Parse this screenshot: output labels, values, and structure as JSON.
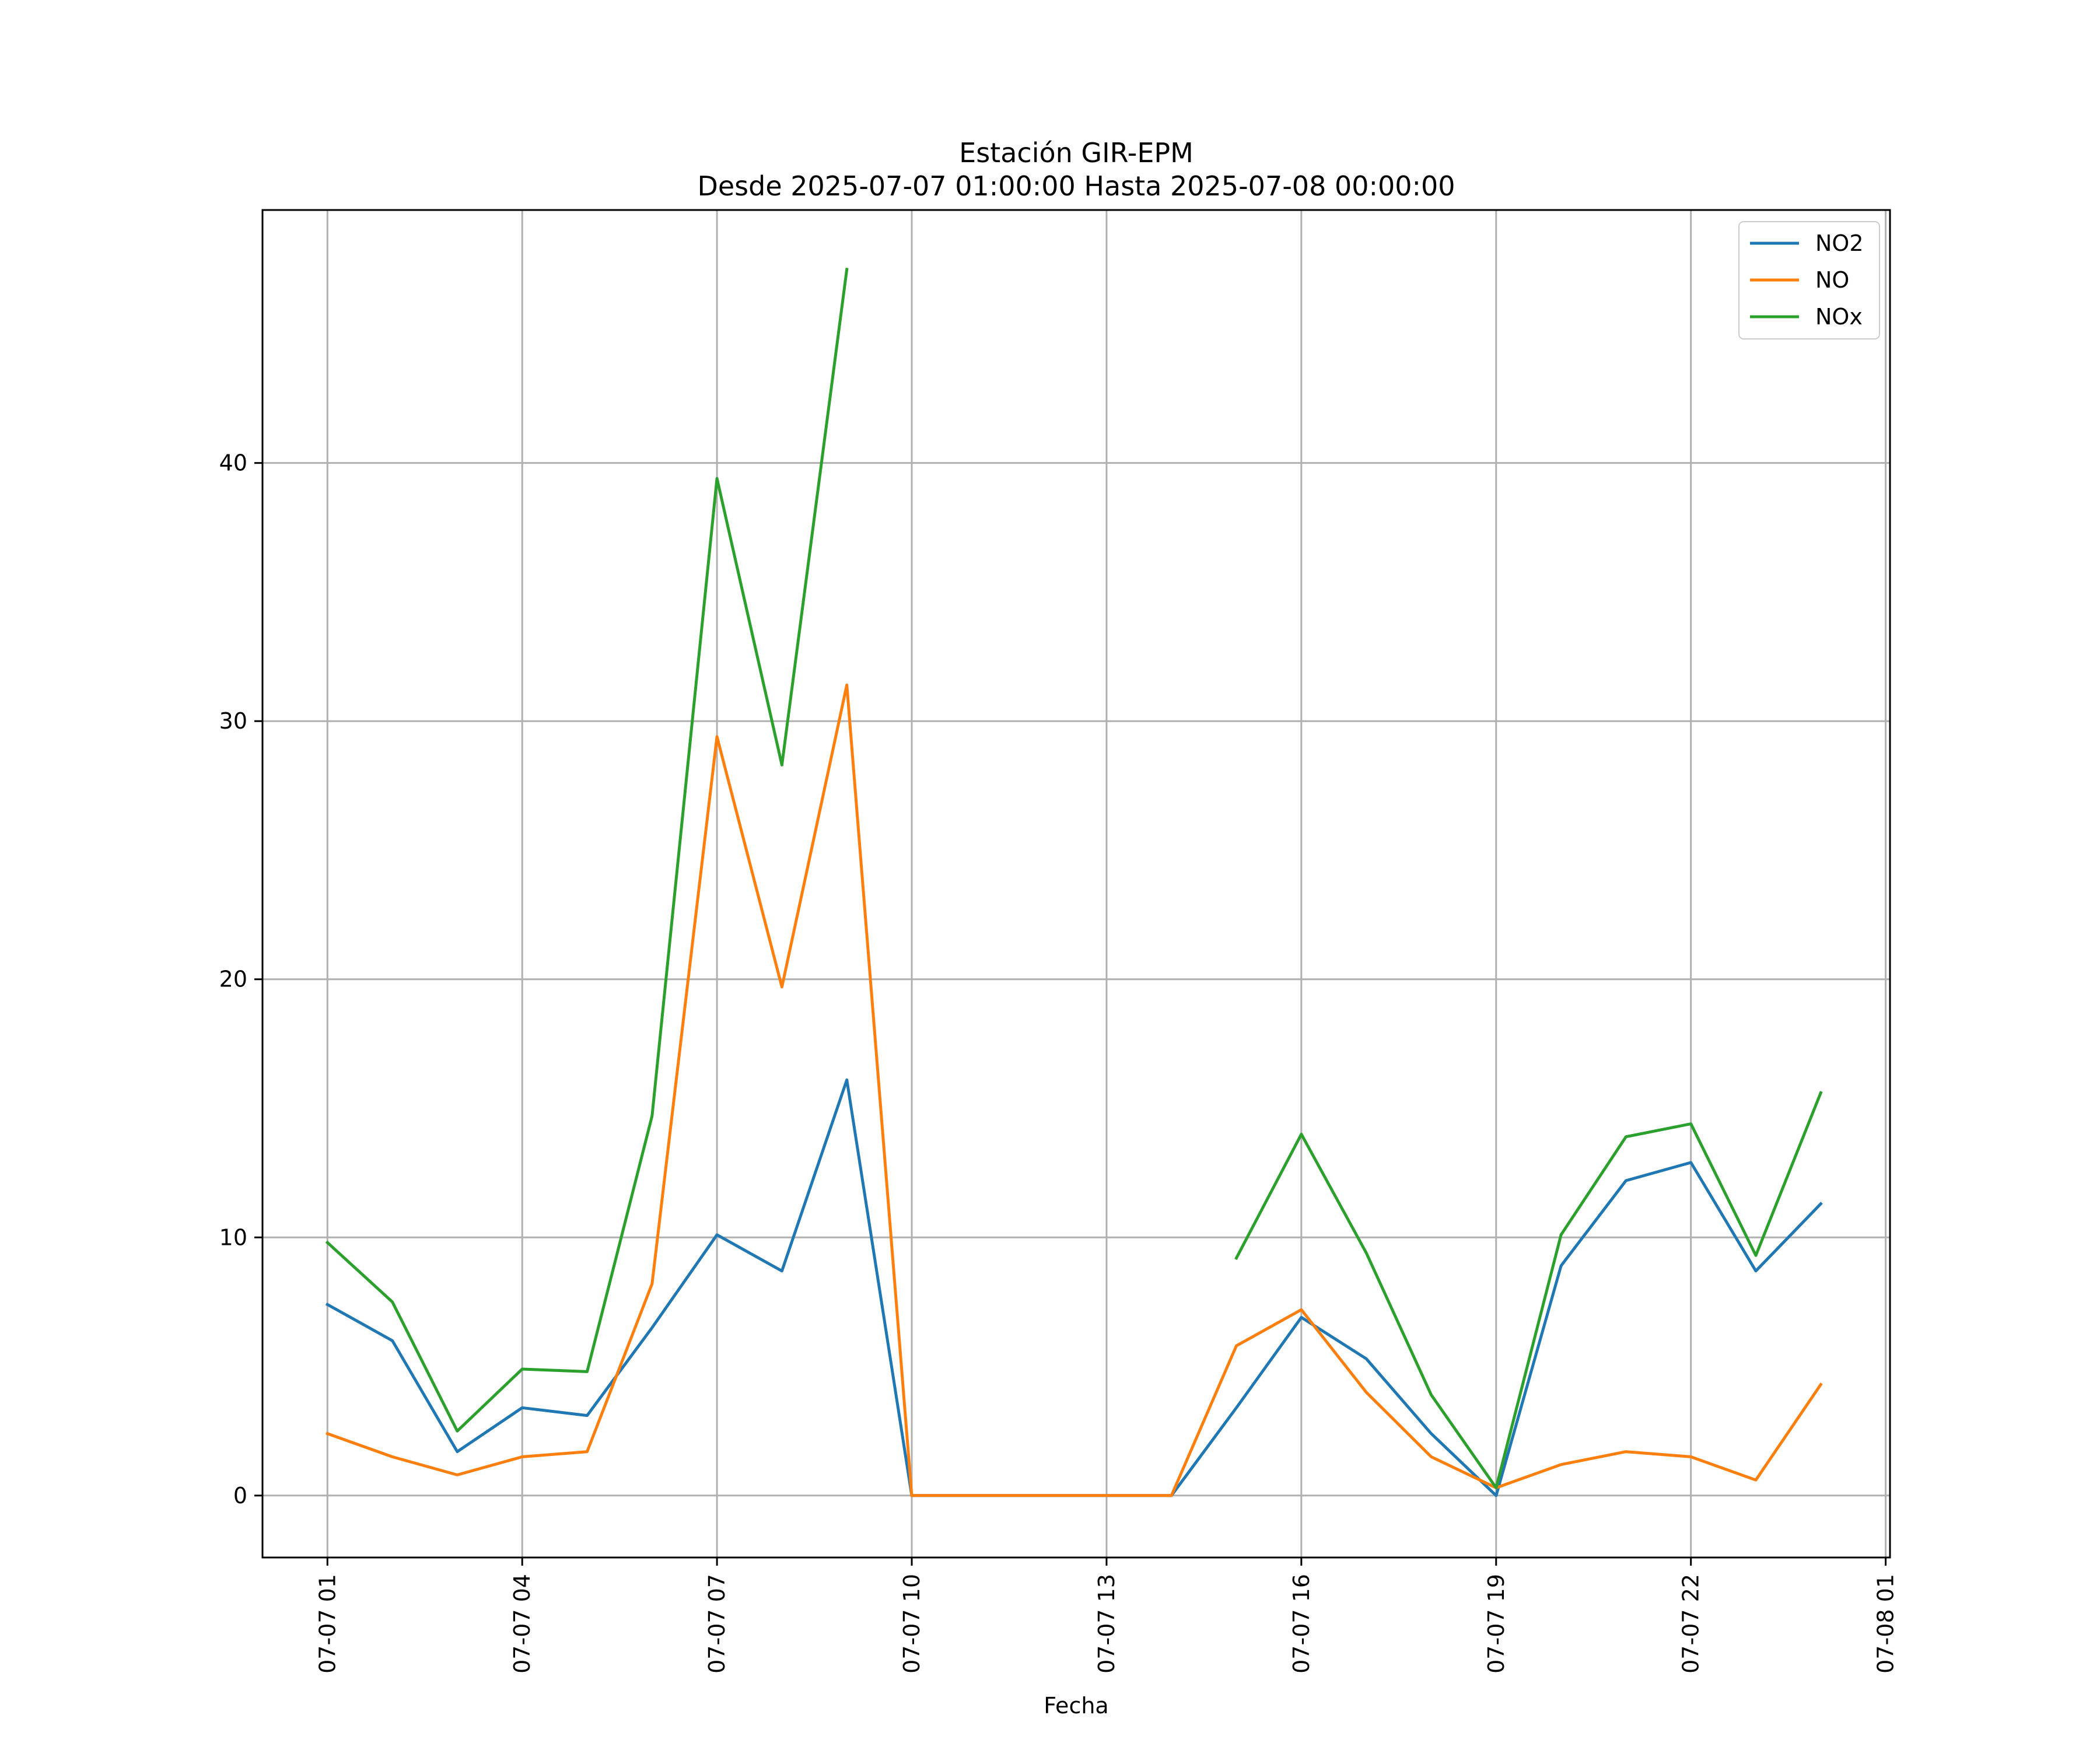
{
  "chart_data": {
    "type": "line",
    "title": "Estación GIR-EPM",
    "subtitle": "Desde 2025-07-07 01:00:00 Hasta 2025-07-08 00:00:00",
    "xlabel": "Fecha",
    "ylabel": "",
    "x_ticks": [
      "07-07 01",
      "07-07 04",
      "07-07 07",
      "07-07 10",
      "07-07 13",
      "07-07 16",
      "07-07 19",
      "07-07 22",
      "07-08 01"
    ],
    "y_ticks": [
      0,
      10,
      20,
      30,
      40
    ],
    "ylim": [
      -2.4,
      49.8
    ],
    "xlim": [
      "2025-07-07 00:00",
      "2025-07-08 01:04"
    ],
    "grid": true,
    "legend_position": "top-right",
    "x": [
      "2025-07-07 01:00",
      "2025-07-07 02:00",
      "2025-07-07 03:00",
      "2025-07-07 04:00",
      "2025-07-07 05:00",
      "2025-07-07 06:00",
      "2025-07-07 07:00",
      "2025-07-07 08:00",
      "2025-07-07 09:00",
      "2025-07-07 10:00",
      "2025-07-07 11:00",
      "2025-07-07 12:00",
      "2025-07-07 13:00",
      "2025-07-07 14:00",
      "2025-07-07 15:00",
      "2025-07-07 16:00",
      "2025-07-07 17:00",
      "2025-07-07 18:00",
      "2025-07-07 19:00",
      "2025-07-07 20:00",
      "2025-07-07 21:00",
      "2025-07-07 22:00",
      "2025-07-07 23:00",
      "2025-07-08 00:00"
    ],
    "series": [
      {
        "name": "NO2",
        "color": "#1f77b4",
        "values": [
          7.4,
          6.0,
          1.7,
          3.4,
          3.1,
          6.5,
          10.1,
          8.7,
          16.1,
          0,
          0,
          0,
          0,
          0,
          3.4,
          6.9,
          5.3,
          2.4,
          0,
          8.9,
          12.2,
          12.9,
          8.7,
          11.3
        ]
      },
      {
        "name": "NO",
        "color": "#ff7f0e",
        "values": [
          2.4,
          1.5,
          0.8,
          1.5,
          1.7,
          8.2,
          29.4,
          19.7,
          31.4,
          0,
          0,
          0,
          0,
          0,
          5.8,
          7.2,
          4.0,
          1.5,
          0.3,
          1.2,
          1.7,
          1.5,
          0.6,
          4.3
        ]
      },
      {
        "name": "NOx",
        "color": "#2ca02c",
        "values": [
          9.8,
          7.5,
          2.5,
          4.9,
          4.8,
          14.7,
          39.4,
          28.3,
          47.5,
          null,
          null,
          null,
          null,
          null,
          9.2,
          14.0,
          9.4,
          3.9,
          0.3,
          10.1,
          13.9,
          14.4,
          9.3,
          15.6
        ]
      }
    ]
  }
}
